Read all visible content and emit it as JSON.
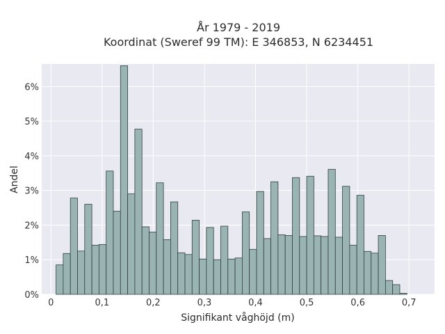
{
  "chart_data": {
    "type": "bar",
    "title": "År 1979 - 2019",
    "subtitle": "Koordinat (Sweref 99 TM): E 346853, N 6234451",
    "xlabel": "Signifikant våghöjd (m)",
    "ylabel": "Andel",
    "xlim": [
      -0.018,
      0.75
    ],
    "ylim": [
      0,
      0.0665
    ],
    "grid": true,
    "bar_color": "#9ab4b4",
    "bar_edge_color": "#2f3e3e",
    "background_color": "#e9e9f1",
    "x_ticks": [
      0,
      0.1,
      0.2,
      0.3,
      0.4,
      0.5,
      0.6,
      0.7
    ],
    "x_tick_labels": [
      "0",
      "0,1",
      "0,2",
      "0,3",
      "0,4",
      "0,5",
      "0,6",
      "0,7"
    ],
    "y_ticks": [
      0,
      0.01,
      0.02,
      0.03,
      0.04,
      0.05,
      0.06
    ],
    "y_tick_labels": [
      "0%",
      "1%",
      "2%",
      "3%",
      "4%",
      "5%",
      "6%"
    ],
    "bin_start": 0.01,
    "bin_width": 0.014,
    "values": [
      0.0085,
      0.0118,
      0.0278,
      0.0125,
      0.026,
      0.0142,
      0.0144,
      0.0356,
      0.024,
      0.066,
      0.029,
      0.0477,
      0.0195,
      0.018,
      0.0322,
      0.0158,
      0.0267,
      0.012,
      0.0115,
      0.0214,
      0.0102,
      0.0193,
      0.01,
      0.0197,
      0.0102,
      0.0105,
      0.0238,
      0.013,
      0.0297,
      0.0161,
      0.0325,
      0.0172,
      0.017,
      0.0337,
      0.0167,
      0.0341,
      0.0169,
      0.0167,
      0.0361,
      0.0165,
      0.0312,
      0.0142,
      0.0286,
      0.0124,
      0.0119,
      0.017,
      0.004,
      0.0028,
      0.0003
    ]
  }
}
